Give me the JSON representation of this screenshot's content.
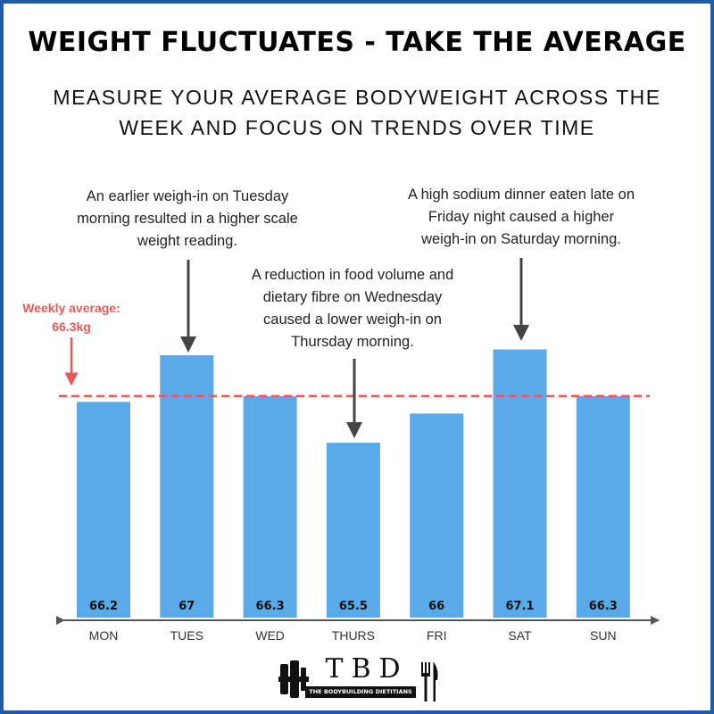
{
  "header": {
    "title": "WEIGHT FLUCTUATES - TAKE THE AVERAGE",
    "subtitle_line1": "MEASURE YOUR AVERAGE BODYWEIGHT ACROSS THE",
    "subtitle_line2": "WEEK AND FOCUS ON TRENDS OVER TIME"
  },
  "annotations": {
    "tuesday": [
      "An earlier weigh-in on Tuesday",
      "morning resulted in a higher scale",
      "weight reading."
    ],
    "thursday": [
      "A reduction in food volume and",
      "dietary fibre on Wednesday",
      "caused a lower weigh-in on",
      "Thursday morning."
    ],
    "saturday": [
      "A high sodium dinner eaten late on",
      "Friday night caused a higher",
      "weigh-in on Saturday morning."
    ],
    "average_line1": "Weekly average:",
    "average_line2": "66.3kg"
  },
  "chart_data": {
    "type": "bar",
    "categories": [
      "MON",
      "TUES",
      "WED",
      "THURS",
      "FRI",
      "SAT",
      "SUN"
    ],
    "values": [
      66.2,
      67,
      66.3,
      65.5,
      66,
      67.1,
      66.3
    ],
    "value_labels": [
      "66.2",
      "67",
      "66.3",
      "65.5",
      "66",
      "67.1",
      "66.3"
    ],
    "reference_line": {
      "value": 66.3,
      "style": "dashed"
    },
    "ylim": [
      62.5,
      67.2
    ],
    "grid": false,
    "legend": "none",
    "colors": {
      "bar": "#5aaaea",
      "average": "#e85a5a",
      "axis": "#555555",
      "arrow": "#444444"
    }
  },
  "logo": {
    "letters": "TBD",
    "tagline": "THE BODYBUILDING DIETITIANS"
  }
}
